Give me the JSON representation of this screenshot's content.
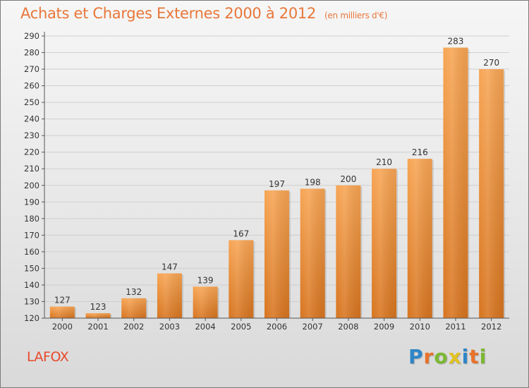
{
  "header": {
    "title": "Achats et Charges Externes 2000 à 2012",
    "unit": "(en milliers d'€)"
  },
  "commune": "LAFOX",
  "logo": {
    "text": "Proxiti",
    "letters": [
      {
        "ch": "P",
        "color": "#2f86c8"
      },
      {
        "ch": "r",
        "color": "#e8732a"
      },
      {
        "ch": "o",
        "color": "#7cb832"
      },
      {
        "ch": "x",
        "color": "#e2c220"
      },
      {
        "ch": "i",
        "color": "#2f86c8"
      },
      {
        "ch": "t",
        "color": "#e8732a"
      },
      {
        "ch": "i",
        "color": "#7cb832"
      }
    ]
  },
  "colors": {
    "bar_top": "#f7a554",
    "bar_bottom": "#d7741f",
    "title": "#e8773a",
    "commune": "#e84a2a"
  },
  "chart_data": {
    "type": "bar",
    "title": "Achats et Charges Externes 2000 à 2012",
    "categories": [
      "2000",
      "2001",
      "2002",
      "2003",
      "2004",
      "2005",
      "2006",
      "2007",
      "2008",
      "2009",
      "2010",
      "2011",
      "2012"
    ],
    "values": [
      127,
      123,
      132,
      147,
      139,
      167,
      197,
      198,
      200,
      210,
      216,
      283,
      270
    ],
    "ylim": [
      120,
      290
    ],
    "ytick_step": 10,
    "grid": true,
    "xlabel": "",
    "ylabel": ""
  }
}
